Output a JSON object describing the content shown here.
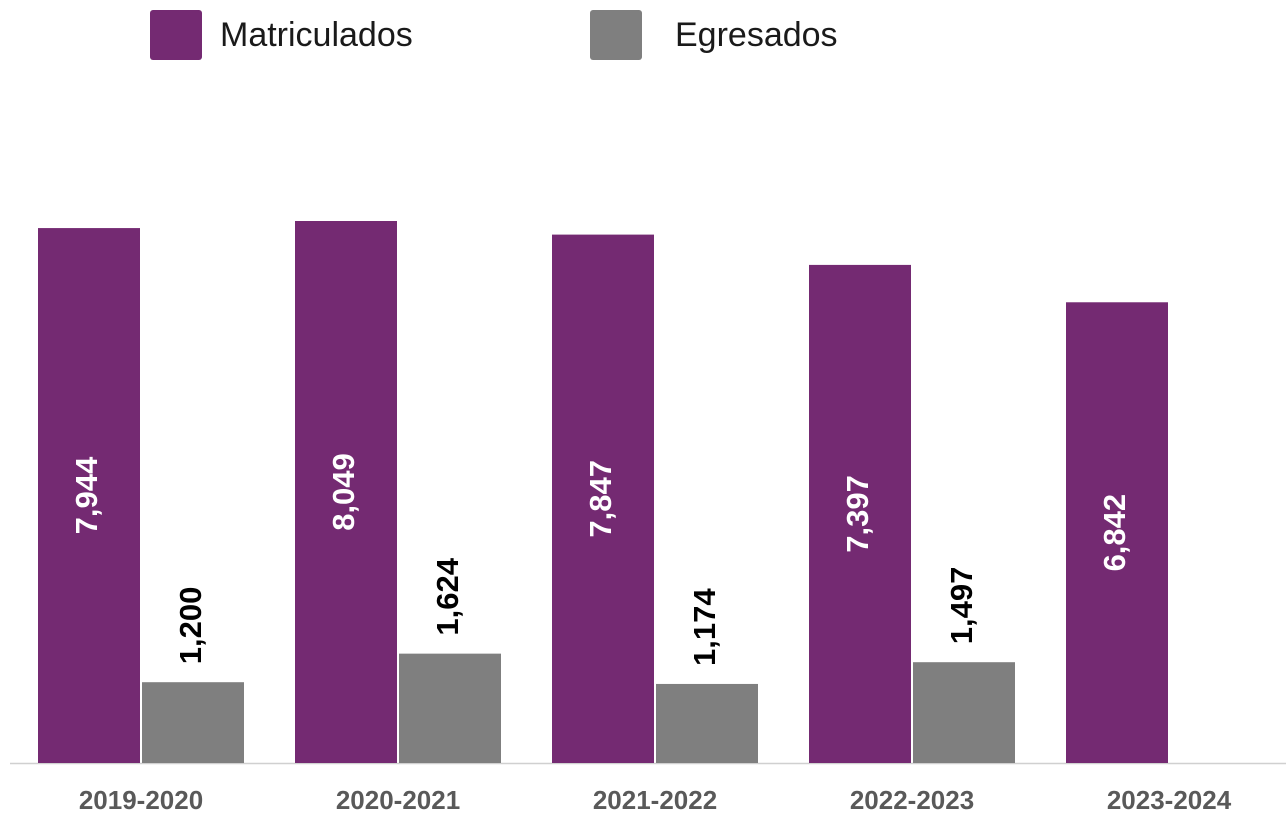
{
  "chart_data": {
    "type": "bar",
    "categories": [
      "2019-2020",
      "2020-2021",
      "2021-2022",
      "2022-2023",
      "2023-2024"
    ],
    "series": [
      {
        "name": "Matriculados",
        "color": "#742a72",
        "values": [
          7944,
          8049,
          7847,
          7397,
          6842
        ],
        "value_labels": [
          "7,944",
          "8,049",
          "7,847",
          "7,397",
          "6,842"
        ]
      },
      {
        "name": "Egresados",
        "color": "#7f7f7f",
        "values": [
          1200,
          1624,
          1174,
          1497,
          null
        ],
        "value_labels": [
          "1,200",
          "1,624",
          "1,174",
          "1,497",
          null
        ]
      }
    ],
    "legend": "top"
  }
}
